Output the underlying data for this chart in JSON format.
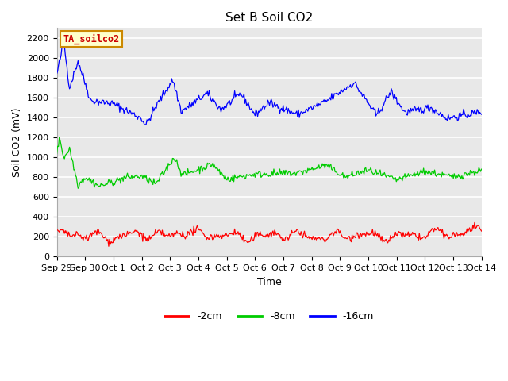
{
  "title": "Set B Soil CO2",
  "xlabel": "Time",
  "ylabel": "Soil CO2 (mV)",
  "annotation_text": "TA_soilco2",
  "annotation_bbox_facecolor": "#ffffcc",
  "annotation_bbox_edgecolor": "#cc8800",
  "annotation_text_color": "#cc0000",
  "legend_labels": [
    "-2cm",
    "-8cm",
    "-16cm"
  ],
  "legend_colors": [
    "#ff0000",
    "#00cc00",
    "#0000ff"
  ],
  "fig_facecolor": "#ffffff",
  "plot_facecolor": "#e8e8e8",
  "grid_color": "#ffffff",
  "ylim": [
    0,
    2300
  ],
  "yticks": [
    0,
    200,
    400,
    600,
    800,
    1000,
    1200,
    1400,
    1600,
    1800,
    2000,
    2200
  ],
  "xtick_labels": [
    "Sep 29",
    "Sep 30",
    "Oct 1",
    "Oct 2",
    "Oct 3",
    "Oct 4",
    "Oct 5",
    "Oct 6",
    "Oct 7",
    "Oct 8",
    "Oct 9",
    "Oct 10",
    "Oct 11",
    "Oct 12",
    "Oct 13",
    "Oct 14"
  ],
  "n_points": 500,
  "seed": 42,
  "title_fontsize": 11,
  "axis_fontsize": 9,
  "tick_fontsize": 8
}
